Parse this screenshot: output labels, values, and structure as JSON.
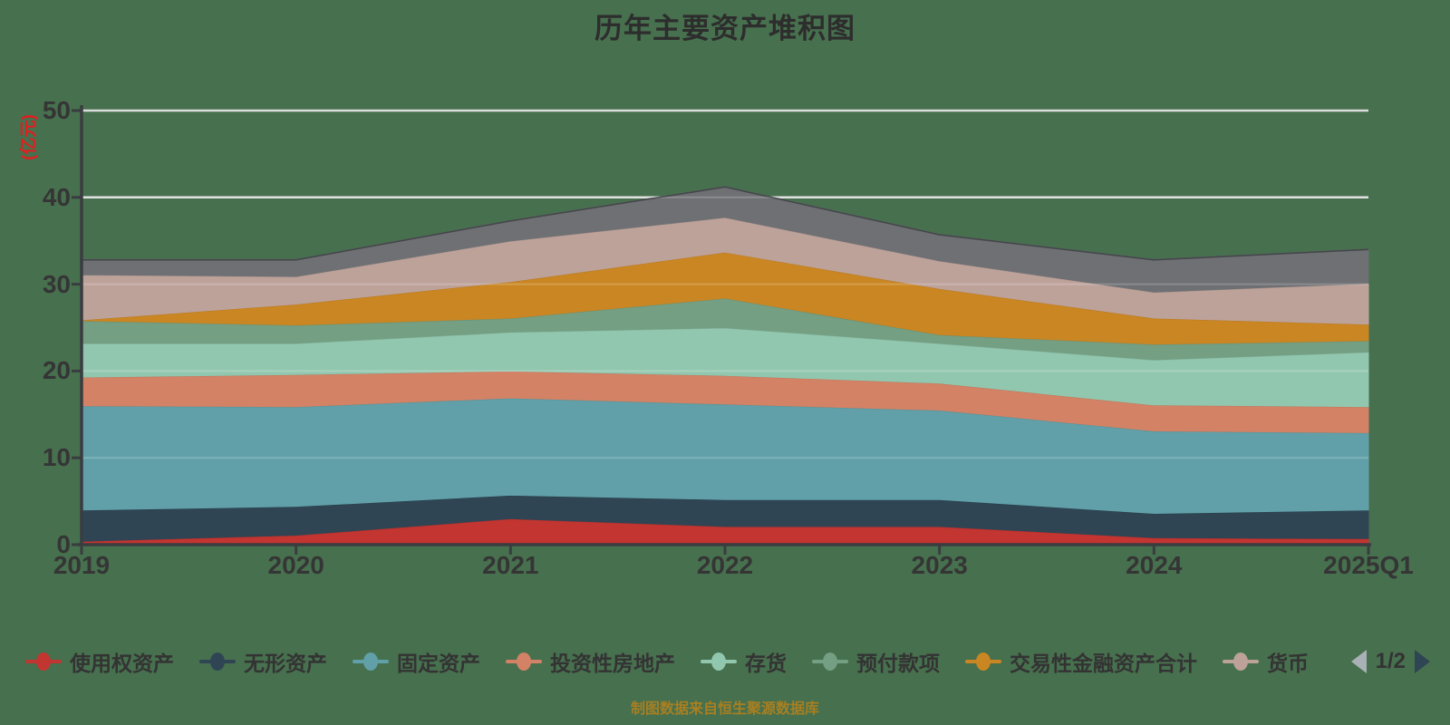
{
  "title": "历年主要资产堆积图",
  "source_note": "制图数据来自恒生聚源数据库",
  "theme": {
    "background": "#47704e",
    "title_color": "#2d2d2d",
    "axis_color": "#3a3d40",
    "tick_label_color": "#353535",
    "gridline_color": "#dcdcdc",
    "y_axis_name_color": "#e01f1f",
    "source_color": "#a87f21",
    "legend_text_color": "#333333",
    "pager_prev_color": "#a9b0b6",
    "pager_next_color": "#2f4554"
  },
  "y_axis": {
    "name": "(亿元)",
    "ticks": [
      "0",
      "10",
      "20",
      "30",
      "40",
      "50"
    ],
    "max": 50
  },
  "x_axis": {
    "categories": [
      "2019",
      "2020",
      "2021",
      "2022",
      "2023",
      "2024",
      "2025Q1"
    ]
  },
  "legend": {
    "items": [
      {
        "label": "使用权资产",
        "color": "#c23531",
        "truncated": false
      },
      {
        "label": "无形资产",
        "color": "#2f4554",
        "truncated": false
      },
      {
        "label": "固定资产",
        "color": "#61a0a8",
        "truncated": false
      },
      {
        "label": "投资性房地产",
        "color": "#d48265",
        "truncated": false
      },
      {
        "label": "存货",
        "color": "#91c7ae",
        "truncated": false
      },
      {
        "label": "预付款项",
        "color": "#749f83",
        "truncated": false
      },
      {
        "label": "交易性金融资产合计",
        "color": "#ca8622",
        "truncated": false
      },
      {
        "label": "货币",
        "color": "#bda29a",
        "truncated": true
      }
    ],
    "pager": {
      "label": "1/2",
      "prev_icon": "left-triangle-icon",
      "next_icon": "right-triangle-icon"
    }
  },
  "chart_data": {
    "type": "area",
    "stacked": true,
    "title": "历年主要资产堆积图",
    "xlabel": "",
    "ylabel": "(亿元)",
    "ylim": [
      0,
      50
    ],
    "grid": true,
    "legend_position": "bottom",
    "x": [
      "2019",
      "2020",
      "2021",
      "2022",
      "2023",
      "2024",
      "2025Q1"
    ],
    "series": [
      {
        "name": "使用权资产",
        "color": "#c23531",
        "values": [
          0.4,
          1.1,
          3.0,
          2.1,
          2.1,
          0.8,
          0.7
        ]
      },
      {
        "name": "无形资产",
        "color": "#2f4554",
        "values": [
          3.6,
          3.3,
          2.7,
          3.1,
          3.1,
          2.8,
          3.3
        ]
      },
      {
        "name": "固定资产",
        "color": "#61a0a8",
        "values": [
          12.0,
          11.5,
          11.2,
          11.0,
          10.3,
          9.5,
          8.9
        ]
      },
      {
        "name": "投资性房地产",
        "color": "#d48265",
        "values": [
          3.3,
          3.7,
          3.1,
          3.3,
          3.1,
          3.0,
          3.0
        ]
      },
      {
        "name": "存货",
        "color": "#91c7ae",
        "values": [
          3.9,
          3.6,
          4.5,
          5.5,
          4.6,
          5.2,
          6.3
        ]
      },
      {
        "name": "预付款项",
        "color": "#749f83",
        "values": [
          2.6,
          2.1,
          1.6,
          3.4,
          1.0,
          1.8,
          1.3
        ]
      },
      {
        "name": "交易性金融资产合计",
        "color": "#ca8622",
        "values": [
          0.1,
          2.4,
          4.2,
          5.3,
          5.3,
          3.0,
          1.9
        ]
      },
      {
        "name": "货币",
        "color": "#bda29a",
        "values": [
          5.2,
          3.2,
          4.7,
          4.0,
          3.2,
          3.0,
          4.7
        ]
      },
      {
        "name": "",
        "color": "#6e7074",
        "values": [
          1.7,
          1.9,
          2.3,
          3.5,
          3.0,
          3.7,
          3.9
        ]
      }
    ]
  }
}
